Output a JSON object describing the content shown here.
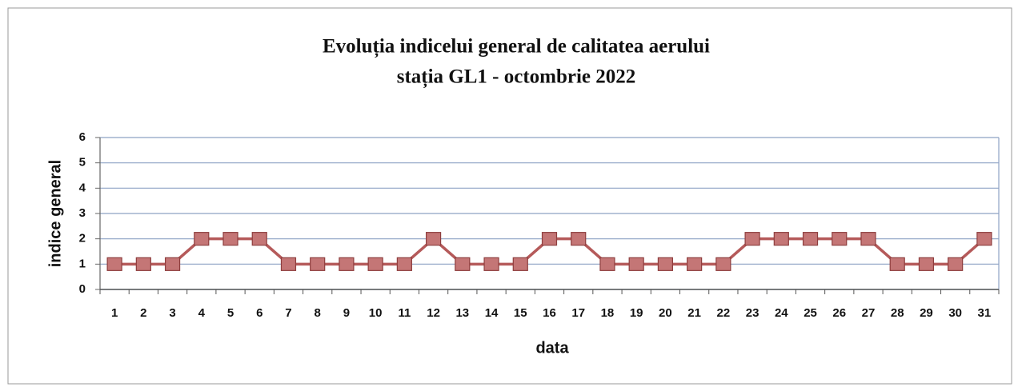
{
  "chart_data": {
    "type": "line",
    "title": "Evoluția indicelui general de calitatea aerului",
    "subtitle": "stația GL1 - octombrie 2022",
    "x_label": "data",
    "y_label": "indice general",
    "categories": [
      "1",
      "2",
      "3",
      "4",
      "5",
      "6",
      "7",
      "8",
      "9",
      "10",
      "11",
      "12",
      "13",
      "14",
      "15",
      "16",
      "17",
      "18",
      "19",
      "20",
      "21",
      "22",
      "23",
      "24",
      "25",
      "26",
      "27",
      "28",
      "29",
      "30",
      "31"
    ],
    "values": [
      1,
      1,
      1,
      2,
      2,
      2,
      1,
      1,
      1,
      1,
      1,
      2,
      1,
      1,
      1,
      2,
      2,
      1,
      1,
      1,
      1,
      1,
      2,
      2,
      2,
      2,
      2,
      1,
      1,
      1,
      2
    ],
    "color": "#b55a5a",
    "ylim": [
      0,
      6
    ],
    "yticks": [
      0,
      1,
      2,
      3,
      4,
      5,
      6
    ],
    "grid": true
  }
}
